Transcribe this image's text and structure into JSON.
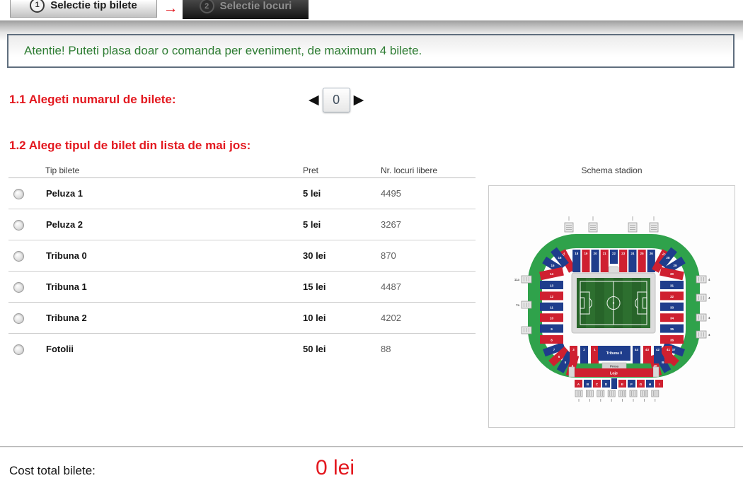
{
  "tabs": {
    "step1": {
      "number": "1",
      "label": "Selectie tip bilete"
    },
    "arrow": "→",
    "step2": {
      "number": "2",
      "label": "Selectie locuri"
    }
  },
  "notice": "Atentie! Puteti plasa doar o comanda per eveniment, de maximum 4 bilete.",
  "section1": {
    "title": "1.1 Alegeti numarul de bilete:",
    "stepper_value": "0",
    "dec_icon": "◀",
    "inc_icon": "▶"
  },
  "section2": {
    "title": "1.2 Alege tipul de bilet din lista de mai jos:"
  },
  "table": {
    "headers": {
      "type": "Tip bilete",
      "price": "Pret",
      "seats": "Nr. locuri libere",
      "schema": "Schema stadion"
    },
    "rows": [
      {
        "type": "Peluza 1",
        "price": "5 lei",
        "seats": "4495"
      },
      {
        "type": "Peluza 2",
        "price": "5 lei",
        "seats": "3267"
      },
      {
        "type": "Tribuna 0",
        "price": "30 lei",
        "seats": "870"
      },
      {
        "type": "Tribuna 1",
        "price": "15 lei",
        "seats": "4487"
      },
      {
        "type": "Tribuna 2",
        "price": "10 lei",
        "seats": "4202"
      },
      {
        "type": "Fotolii",
        "price": "50 lei",
        "seats": "88"
      }
    ]
  },
  "footer": {
    "label": "Cost total bilete:",
    "total": "0 lei"
  },
  "colors": {
    "accent_red": "#e3181f",
    "notice_green": "#2e7d33",
    "sector_red": "#cf2030",
    "sector_blue": "#1f3d8c",
    "ring_green": "#2fa24b",
    "pitch_green": "#2d6f2f",
    "pitch_stripe": "#276429",
    "track_gray": "#dcdcdc"
  },
  "stadium": {
    "top_sectors": [
      "17",
      "18",
      "19",
      "20",
      "21",
      "22",
      "23",
      "24",
      "25",
      "26",
      "27"
    ],
    "left_corner": [
      "16",
      "15",
      "14"
    ],
    "right_corner": [
      "28",
      "29",
      "30"
    ],
    "left_stack": [
      "13",
      "12",
      "11",
      "10",
      "9",
      "8"
    ],
    "right_stack": [
      "31",
      "32",
      "33",
      "34",
      "35",
      "36"
    ],
    "left_lower": [
      "7",
      "6",
      "5",
      "4"
    ],
    "right_lower": [
      "37",
      "38",
      "39",
      "40"
    ],
    "bottom_left": [
      "3",
      "2",
      "1"
    ],
    "bottom_right": [
      "44",
      "43",
      "42",
      "41"
    ],
    "tribuna_label": "Tribuna 0",
    "presa_label": "Presa",
    "loje_label": "Loje",
    "letter_blocks": [
      "A",
      "B",
      "C",
      "D",
      "E",
      "F",
      "G",
      "H",
      "I"
    ],
    "gate_labels_left": [
      "11a",
      "7a"
    ],
    "gate_labels_right": [
      "4",
      "4",
      "4",
      "4"
    ]
  }
}
